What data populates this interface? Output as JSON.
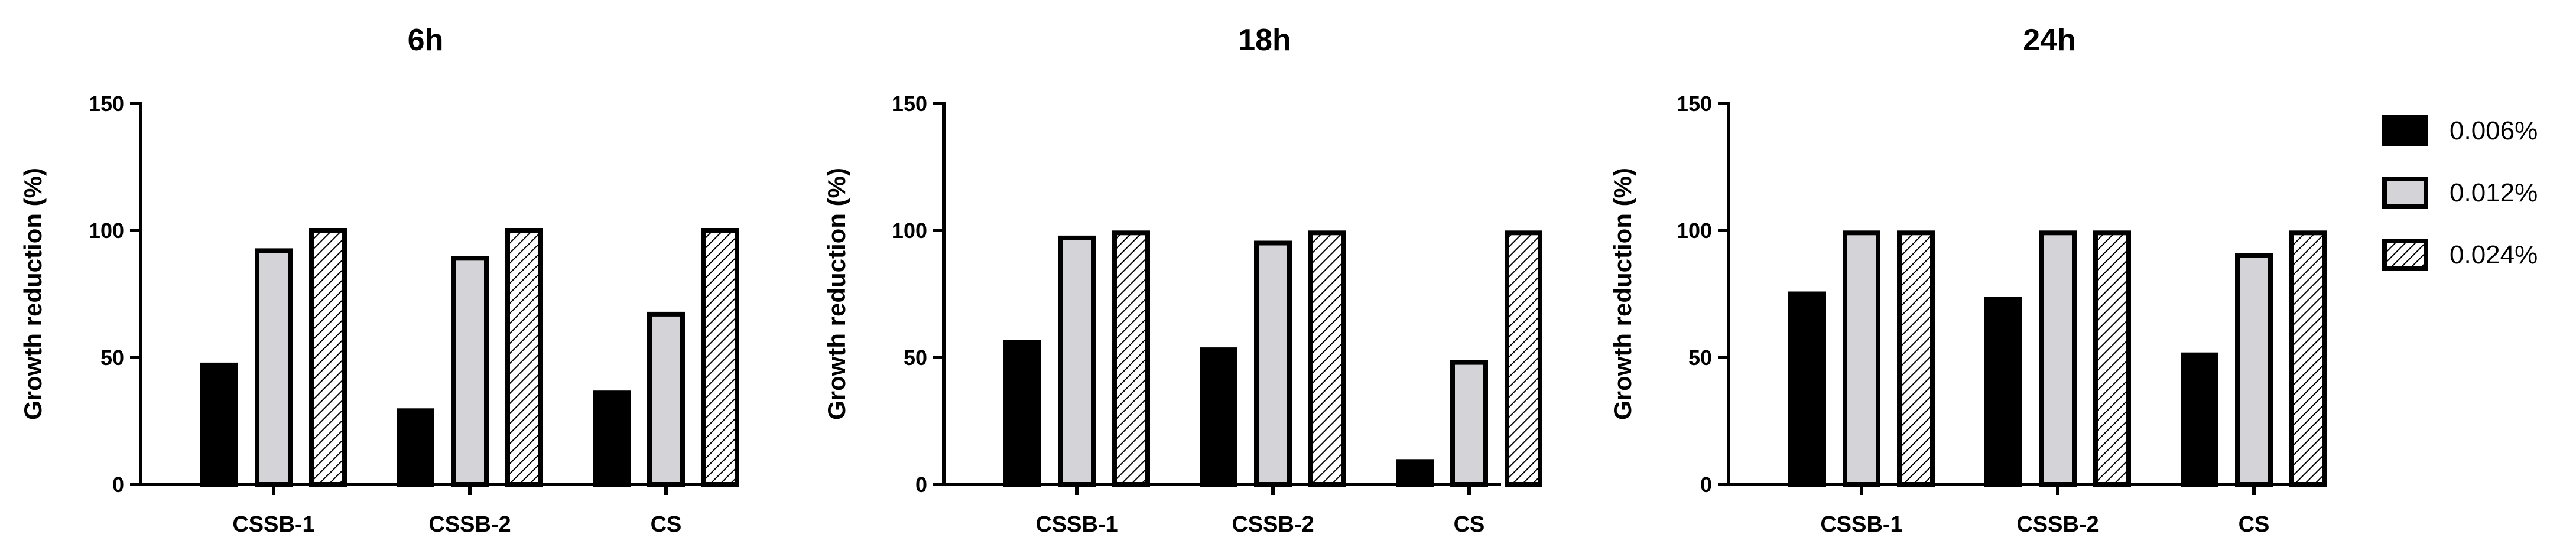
{
  "chart_data": [
    {
      "type": "bar",
      "title": "6h",
      "ylabel": "Growth reduction (%)",
      "xlabel": "",
      "ylim": [
        0,
        150
      ],
      "yticks": [
        0,
        50,
        100,
        150
      ],
      "categories": [
        "CSSB-1",
        "CSSB-2",
        "CS"
      ],
      "series": [
        {
          "name": "0.006%",
          "values": [
            47,
            29,
            36
          ]
        },
        {
          "name": "0.012%",
          "values": [
            92,
            89,
            67
          ]
        },
        {
          "name": "0.024%",
          "values": [
            100,
            100,
            100
          ]
        }
      ]
    },
    {
      "type": "bar",
      "title": "18h",
      "ylabel": "Growth reduction (%)",
      "xlabel": "",
      "ylim": [
        0,
        150
      ],
      "yticks": [
        0,
        50,
        100,
        150
      ],
      "categories": [
        "CSSB-1",
        "CSSB-2",
        "CS"
      ],
      "series": [
        {
          "name": "0.006%",
          "values": [
            56,
            53,
            9
          ]
        },
        {
          "name": "0.012%",
          "values": [
            97,
            95,
            48
          ]
        },
        {
          "name": "0.024%",
          "values": [
            99,
            99,
            99
          ]
        }
      ]
    },
    {
      "type": "bar",
      "title": "24h",
      "ylabel": "Growth reduction (%)",
      "xlabel": "",
      "ylim": [
        0,
        150
      ],
      "yticks": [
        0,
        50,
        100,
        150
      ],
      "categories": [
        "CSSB-1",
        "CSSB-2",
        "CS"
      ],
      "series": [
        {
          "name": "0.006%",
          "values": [
            75,
            73,
            51
          ]
        },
        {
          "name": "0.012%",
          "values": [
            99,
            99,
            90
          ]
        },
        {
          "name": "0.024%",
          "values": [
            99,
            99,
            99
          ]
        }
      ]
    }
  ],
  "legend": {
    "position": "right",
    "items": [
      {
        "label": "0.006%",
        "fill": "solid",
        "color": "#000000"
      },
      {
        "label": "0.012%",
        "fill": "solid",
        "color": "#d3d3d8"
      },
      {
        "label": "0.024%",
        "fill": "hatched",
        "color": "#ffffff"
      }
    ]
  },
  "colors": {
    "series_0": "#000000",
    "series_1": "#d3d3d8",
    "hatch_bg": "#ffffff",
    "hatch_line": "#000000",
    "outline": "#000000"
  }
}
